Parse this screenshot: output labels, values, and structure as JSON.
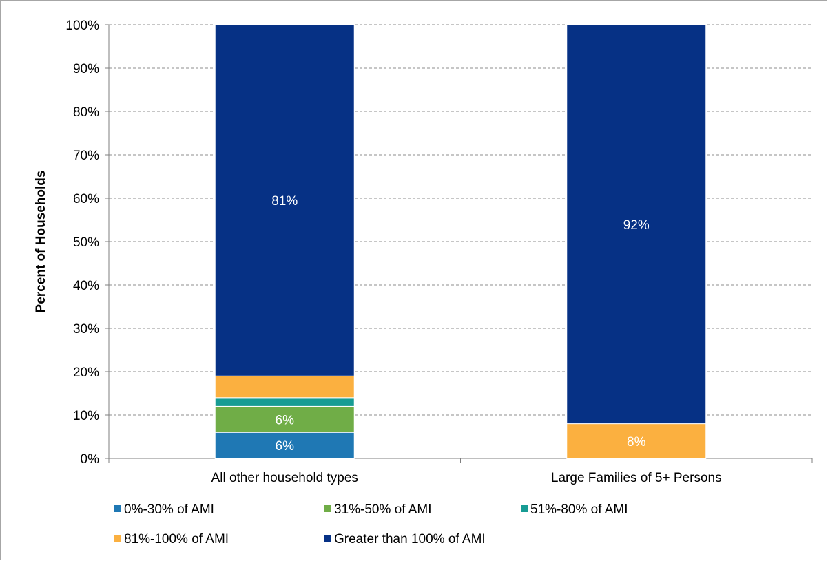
{
  "chart_data": {
    "type": "bar",
    "stacked": true,
    "title": "",
    "xlabel": "",
    "ylabel": "Percent of Households",
    "ylim": [
      0,
      100
    ],
    "yticks": [
      "0%",
      "10%",
      "20%",
      "30%",
      "40%",
      "50%",
      "60%",
      "70%",
      "80%",
      "90%",
      "100%"
    ],
    "grid": true,
    "legend_position": "bottom",
    "categories": [
      "All other household types",
      "Large Families of 5+ Persons"
    ],
    "series": [
      {
        "name": "0%-30% of AMI",
        "color": "#1f78b4",
        "values": [
          6,
          0
        ],
        "labels": [
          "6%",
          ""
        ]
      },
      {
        "name": "31%-50% of AMI",
        "color": "#70ad47",
        "values": [
          6,
          0
        ],
        "labels": [
          "6%",
          ""
        ]
      },
      {
        "name": "51%-80% of AMI",
        "color": "#179c94",
        "values": [
          2,
          0
        ],
        "labels": [
          "",
          ""
        ]
      },
      {
        "name": "81%-100% of AMI",
        "color": "#fbb040",
        "values": [
          5,
          8
        ],
        "labels": [
          "",
          "8%"
        ]
      },
      {
        "name": "Greater than 100% of AMI",
        "color": "#063185",
        "values": [
          81,
          92
        ],
        "labels": [
          "81%",
          "92%"
        ]
      }
    ]
  }
}
